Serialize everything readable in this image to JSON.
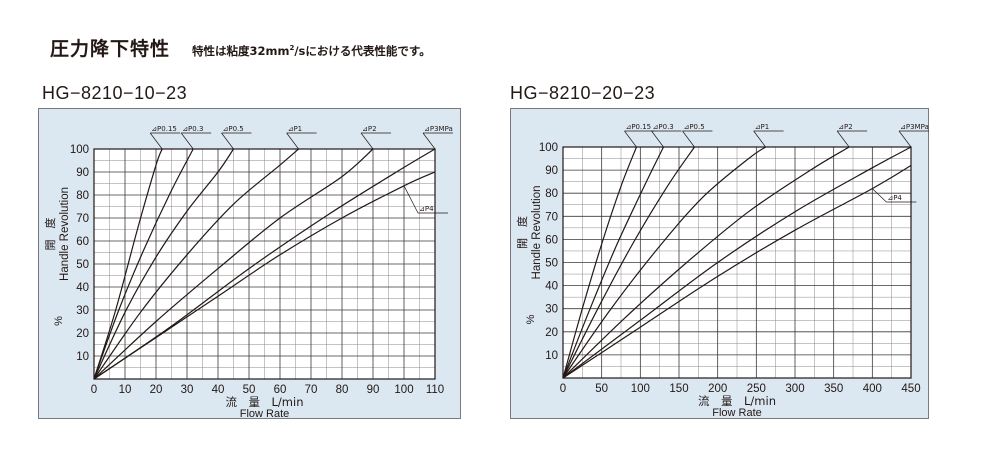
{
  "header": {
    "title": "圧力降下特性",
    "note_prefix": "特性は粘度32mm",
    "note_sup": "2",
    "note_suffix": "/sにおける代表性能です。"
  },
  "chart_data": [
    {
      "type": "line",
      "title": "HG−8210−10−23",
      "xlabel": "流　量　L/min",
      "xlabel_en": "Flow Rate",
      "ylabel": "開　度",
      "ylabel_en": "Handle Revolution",
      "ylabel_unit": "%",
      "xlim": [
        0,
        110
      ],
      "ylim": [
        0,
        100
      ],
      "xticks": [
        0,
        10,
        20,
        30,
        40,
        50,
        60,
        70,
        80,
        90,
        100,
        110
      ],
      "yticks": [
        10,
        20,
        30,
        40,
        50,
        60,
        70,
        80,
        90,
        100
      ],
      "grid": true,
      "series": [
        {
          "name": "⊿P0.15",
          "x": [
            0,
            7,
            14,
            20,
            22
          ],
          "y": [
            0,
            30,
            65,
            93,
            100
          ]
        },
        {
          "name": "⊿P0.3",
          "x": [
            0,
            8,
            16,
            25,
            32
          ],
          "y": [
            0,
            30,
            56,
            82,
            100
          ]
        },
        {
          "name": "⊿P0.5",
          "x": [
            0,
            10,
            20,
            30,
            40,
            45
          ],
          "y": [
            0,
            29,
            53,
            73,
            90,
            100
          ]
        },
        {
          "name": "⊿P1",
          "x": [
            0,
            15,
            30,
            45,
            60,
            66
          ],
          "y": [
            0,
            29,
            54,
            76,
            93,
            100
          ]
        },
        {
          "name": "⊿P2",
          "x": [
            0,
            20,
            40,
            60,
            80,
            90
          ],
          "y": [
            0,
            25,
            48,
            70,
            88,
            100
          ]
        },
        {
          "name": "⊿P3MPa",
          "x": [
            0,
            25,
            50,
            75,
            100,
            110
          ],
          "y": [
            0,
            23,
            48,
            71,
            92,
            100
          ]
        },
        {
          "name": "⊿P4",
          "x": [
            0,
            20,
            40,
            60,
            80,
            100,
            110
          ],
          "y": [
            0,
            18,
            36,
            54,
            70,
            84,
            90
          ]
        }
      ]
    },
    {
      "type": "line",
      "title": "HG−8210−20−23",
      "xlabel": "流　量　L/min",
      "xlabel_en": "Flow Rate",
      "ylabel": "開　度",
      "ylabel_en": "Handle Revolution",
      "ylabel_unit": "%",
      "xlim": [
        0,
        450
      ],
      "ylim": [
        0,
        100
      ],
      "xticks": [
        0,
        50,
        100,
        150,
        200,
        250,
        300,
        350,
        400,
        450
      ],
      "yticks": [
        10,
        20,
        30,
        40,
        50,
        60,
        70,
        80,
        90,
        100
      ],
      "grid": true,
      "series": [
        {
          "name": "⊿P0.15",
          "x": [
            0,
            25,
            50,
            75,
            95
          ],
          "y": [
            0,
            30,
            58,
            83,
            100
          ]
        },
        {
          "name": "⊿P0.3",
          "x": [
            0,
            35,
            70,
            105,
            130
          ],
          "y": [
            0,
            30,
            58,
            83,
            100
          ]
        },
        {
          "name": "⊿P0.5",
          "x": [
            0,
            45,
            90,
            135,
            170
          ],
          "y": [
            0,
            30,
            58,
            83,
            100
          ]
        },
        {
          "name": "⊿P1",
          "x": [
            0,
            60,
            120,
            180,
            240,
            262
          ],
          "y": [
            0,
            29,
            55,
            78,
            95,
            100
          ]
        },
        {
          "name": "⊿P2",
          "x": [
            0,
            80,
            160,
            240,
            320,
            370
          ],
          "y": [
            0,
            26,
            50,
            72,
            90,
            100
          ]
        },
        {
          "name": "⊿P3MPa",
          "x": [
            0,
            100,
            200,
            300,
            400,
            450
          ],
          "y": [
            0,
            25,
            50,
            72,
            91,
            100
          ]
        },
        {
          "name": "⊿P4",
          "x": [
            0,
            100,
            200,
            300,
            400,
            450
          ],
          "y": [
            0,
            22,
            44,
            64,
            82,
            92
          ]
        }
      ]
    }
  ]
}
